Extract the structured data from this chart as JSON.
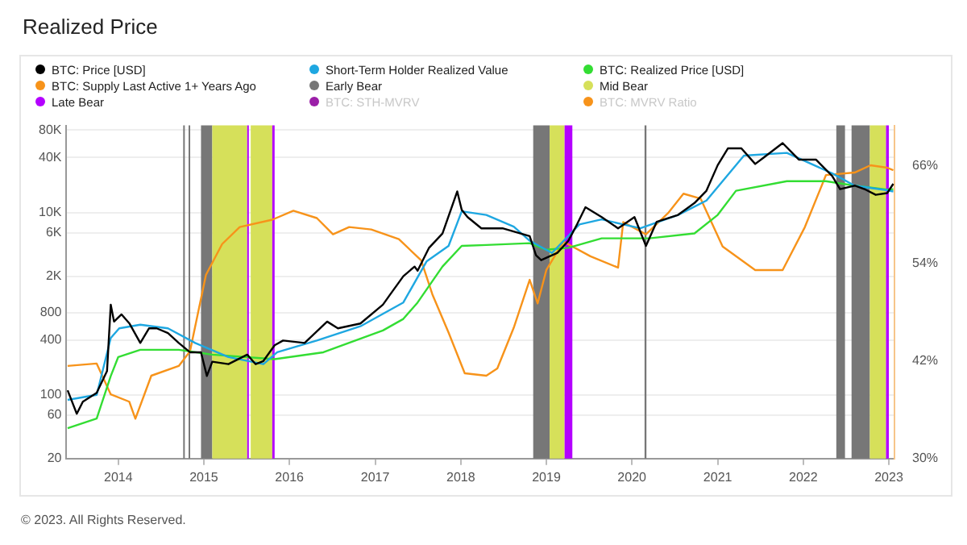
{
  "chart_data": {
    "type": "line",
    "title": "Realized Price",
    "series": [
      {
        "name": "BTC: Price [USD]",
        "color": "#000000",
        "x": [
          "2013-05-30",
          "2013-07-08",
          "2013-08-03",
          "2013-10-01",
          "2013-11-14",
          "2013-11-30",
          "2013-12-14",
          "2014-01-15",
          "2014-02-17",
          "2014-04-05",
          "2014-05-12",
          "2014-06-14",
          "2014-08-01",
          "2014-09-16",
          "2014-11-03",
          "2014-12-20",
          "2015-01-14",
          "2015-02-06",
          "2015-04-16",
          "2015-07-05",
          "2015-08-10",
          "2015-09-12",
          "2015-10-30",
          "2015-12-05",
          "2016-03-06",
          "2016-06-10",
          "2016-07-26",
          "2016-10-30",
          "2017-02-03",
          "2017-03-05",
          "2017-05-01",
          "2017-06-18",
          "2017-07-01",
          "2017-08-18",
          "2017-10-15",
          "2017-12-17",
          "2018-01-05",
          "2018-01-30",
          "2018-03-30",
          "2018-06-28",
          "2018-10-22",
          "2018-11-18",
          "2018-12-10",
          "2019-02-17",
          "2019-04-05",
          "2019-05-12",
          "2019-06-17",
          "2019-08-25",
          "2019-11-03",
          "2020-01-12",
          "2020-03-01",
          "2020-04-16",
          "2020-07-16",
          "2020-09-24",
          "2020-11-14",
          "2021-01-01",
          "2021-02-14",
          "2021-04-12",
          "2021-06-10",
          "2021-07-16",
          "2021-10-05",
          "2021-12-13",
          "2022-02-24",
          "2022-05-05",
          "2022-06-07",
          "2022-08-08",
          "2022-09-24",
          "2022-11-06",
          "2022-12-25",
          "2023-01-20"
        ],
        "values": [
          112,
          62,
          84,
          105,
          182,
          975,
          636,
          762,
          610,
          371,
          536,
          536,
          475,
          371,
          293,
          293,
          161,
          231,
          217,
          276,
          217,
          235,
          350,
          394,
          371,
          636,
          536,
          606,
          975,
          1250,
          2000,
          2550,
          2300,
          4070,
          5880,
          17000,
          10700,
          8900,
          6700,
          6700,
          5500,
          3400,
          3000,
          3600,
          4900,
          7400,
          11400,
          8900,
          6700,
          8900,
          4300,
          7900,
          9400,
          12700,
          17300,
          33000,
          50500,
          50500,
          34000,
          40000,
          57600,
          38000,
          38000,
          25000,
          18000,
          19700,
          17800,
          15600,
          16300,
          20600
        ]
      },
      {
        "name": "Short-Term Holder Realized Value",
        "color": "#1ea7e1",
        "x": [
          "2013-05-30",
          "2013-10-01",
          "2013-11-30",
          "2014-01-05",
          "2014-04-05",
          "2014-08-01",
          "2014-11-25",
          "2015-04-16",
          "2015-09-12",
          "2015-11-10",
          "2016-04-27",
          "2016-10-30",
          "2017-05-01",
          "2017-08-08",
          "2017-11-10",
          "2018-01-05",
          "2018-04-20",
          "2018-08-15",
          "2018-10-22",
          "2019-01-25",
          "2019-05-22",
          "2019-08-25",
          "2020-02-06",
          "2020-07-16",
          "2020-11-14",
          "2021-04-23",
          "2021-10-23",
          "2022-05-05",
          "2022-08-08",
          "2022-12-25",
          "2023-01-20"
        ],
        "values": [
          88,
          100,
          420,
          536,
          588,
          536,
          371,
          260,
          217,
          293,
          394,
          565,
          1030,
          2900,
          4300,
          10300,
          9400,
          7000,
          4900,
          3600,
          7400,
          8400,
          6700,
          9400,
          13500,
          42000,
          45000,
          26800,
          19700,
          17500,
          17000
        ]
      },
      {
        "name": "BTC: Realized Price [USD]",
        "color": "#33dd33",
        "x": [
          "2013-05-30",
          "2013-10-01",
          "2013-11-30",
          "2014-01-01",
          "2014-04-05",
          "2014-09-16",
          "2015-02-06",
          "2015-10-30",
          "2016-05-25",
          "2017-02-03",
          "2017-05-01",
          "2017-07-01",
          "2017-10-15",
          "2018-01-05",
          "2018-04-20",
          "2018-10-22",
          "2019-01-01",
          "2019-04-05",
          "2019-08-25",
          "2020-03-15",
          "2020-09-24",
          "2021-01-01",
          "2021-03-20",
          "2021-10-23",
          "2022-04-08",
          "2022-08-08",
          "2022-12-25",
          "2023-01-20"
        ],
        "values": [
          43,
          55,
          161,
          260,
          312,
          312,
          276,
          246,
          293,
          508,
          680,
          1030,
          2550,
          4300,
          4400,
          4600,
          3900,
          4100,
          5200,
          5200,
          5900,
          9400,
          17300,
          22000,
          22000,
          19700,
          17800,
          18000
        ]
      },
      {
        "name": "BTC: Supply Last Active 1+ Years Ago",
        "color": "#f7931a",
        "axis": "y2",
        "x": [
          "2013-05-30",
          "2013-10-01",
          "2013-11-30",
          "2014-02-17",
          "2014-03-15",
          "2014-05-22",
          "2014-09-16",
          "2014-11-03",
          "2015-01-10",
          "2015-03-20",
          "2015-06-03",
          "2015-10-20",
          "2016-01-18",
          "2016-04-27",
          "2016-07-05",
          "2016-09-12",
          "2016-12-15",
          "2017-04-12",
          "2017-07-16",
          "2017-09-02",
          "2017-11-10",
          "2018-01-18",
          "2018-04-20",
          "2018-06-06",
          "2018-08-15",
          "2018-10-22",
          "2018-11-25",
          "2019-01-01",
          "2019-03-15",
          "2019-07-08",
          "2019-11-03",
          "2019-11-25",
          "2020-03-01",
          "2020-06-03",
          "2020-08-08",
          "2020-10-20",
          "2021-01-22",
          "2021-06-10",
          "2021-10-05",
          "2022-01-08",
          "2022-04-08",
          "2022-08-08",
          "2022-10-15",
          "2022-12-25",
          "2023-01-20"
        ],
        "values": [
          41.4,
          41.7,
          37.9,
          37.0,
          34.9,
          40.2,
          41.4,
          43.2,
          52.6,
          56.4,
          58.5,
          59.4,
          60.5,
          59.6,
          57.6,
          58.5,
          58.2,
          57.0,
          54.4,
          50.2,
          45.5,
          40.5,
          40.2,
          41.1,
          46.1,
          52.0,
          49.1,
          53.2,
          56.7,
          54.9,
          53.5,
          59.1,
          57.6,
          60.2,
          62.6,
          62.0,
          56.1,
          53.2,
          53.2,
          58.5,
          64.9,
          65.2,
          66.1,
          65.8,
          65.5
        ]
      }
    ],
    "bands": [
      {
        "axis": "x",
        "from": "2014-10-05",
        "to": "2014-10-10",
        "label": "Early Bear",
        "color": "#777777"
      },
      {
        "axis": "x",
        "from": "2014-10-28",
        "to": "2014-11-01",
        "color": "#777777"
      },
      {
        "axis": "x",
        "from": "2014-12-20",
        "to": "2015-02-06",
        "color": "#777777"
      },
      {
        "axis": "x",
        "from": "2015-02-06",
        "to": "2015-07-05",
        "label": "Mid Bear",
        "color": "#d6e05a"
      },
      {
        "axis": "x",
        "from": "2015-07-05",
        "to": "2015-07-12",
        "label": "Late Bear",
        "color": "#b400ff"
      },
      {
        "axis": "x",
        "from": "2015-07-20",
        "to": "2015-10-20",
        "color": "#d6e05a"
      },
      {
        "axis": "x",
        "from": "2015-10-20",
        "to": "2015-10-30",
        "color": "#b400ff"
      },
      {
        "axis": "x",
        "from": "2018-11-06",
        "to": "2019-01-15",
        "color": "#777777"
      },
      {
        "axis": "x",
        "from": "2019-01-15",
        "to": "2019-03-20",
        "color": "#d6e05a"
      },
      {
        "axis": "x",
        "from": "2019-03-20",
        "to": "2019-04-22",
        "color": "#b400ff"
      },
      {
        "axis": "x",
        "from": "2020-02-24",
        "to": "2020-03-03",
        "color": "#777777"
      },
      {
        "axis": "x",
        "from": "2022-05-22",
        "to": "2022-06-28",
        "color": "#777777"
      },
      {
        "axis": "x",
        "from": "2022-07-26",
        "to": "2022-10-12",
        "color": "#777777"
      },
      {
        "axis": "x",
        "from": "2022-10-12",
        "to": "2022-12-20",
        "color": "#d6e05a"
      },
      {
        "axis": "x",
        "from": "2022-12-20",
        "to": "2023-01-01",
        "color": "#b400ff"
      }
    ],
    "annotations": [
      "BTC: STH-MVRV",
      "BTC: MVRV Ratio",
      "© 2023. All Rights Reserved."
    ],
    "log": "y",
    "grid": "y",
    "legend": "top",
    "marker": "none",
    "line_style": "solid",
    "xlim": [
      "2013-05-25",
      "2023-01-25"
    ],
    "xticks": [
      "2014",
      "2015",
      "2016",
      "2017",
      "2018",
      "2019",
      "2020",
      "2021",
      "2022",
      "2023"
    ],
    "ylim": [
      20,
      90000
    ],
    "yticks": [
      20,
      60,
      100,
      400,
      800,
      {
        "value": 2000,
        "label": "2K"
      },
      {
        "value": 6000,
        "label": "6K"
      },
      {
        "value": 10000,
        "label": "10K"
      },
      {
        "value": 40000,
        "label": "40K"
      },
      {
        "value": 80000,
        "label": "80K"
      }
    ],
    "y2lim": [
      30,
      71
    ],
    "y2ticks": [
      {
        "value": 30,
        "label": "30%"
      },
      {
        "value": 42,
        "label": "42%"
      },
      {
        "value": 54,
        "label": "54%"
      },
      {
        "value": 66,
        "label": "66%"
      }
    ]
  }
}
